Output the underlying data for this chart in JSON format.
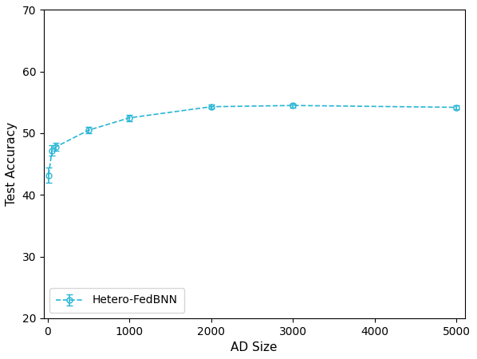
{
  "x": [
    10,
    50,
    100,
    500,
    1000,
    2000,
    3000,
    5000
  ],
  "y": [
    43.2,
    47.2,
    47.8,
    50.5,
    52.5,
    54.3,
    54.5,
    54.2
  ],
  "yerr": [
    1.2,
    0.8,
    0.6,
    0.5,
    0.5,
    0.3,
    0.3,
    0.3
  ],
  "line_color": "#29b6d6",
  "marker": "o",
  "marker_facecolor": "none",
  "linestyle": "--",
  "label": "Hetero-FedBNN",
  "xlabel": "AD Size",
  "ylabel": "Test Accuracy",
  "xlim": [
    -50,
    5100
  ],
  "ylim": [
    20,
    70
  ],
  "yticks": [
    20,
    30,
    40,
    50,
    60,
    70
  ],
  "xticks": [
    0,
    1000,
    2000,
    3000,
    4000,
    5000
  ],
  "figsize": [
    5.98,
    4.5
  ],
  "dpi": 100,
  "legend_loc": "lower left",
  "axis_fontsize": 11,
  "tick_fontsize": 10
}
